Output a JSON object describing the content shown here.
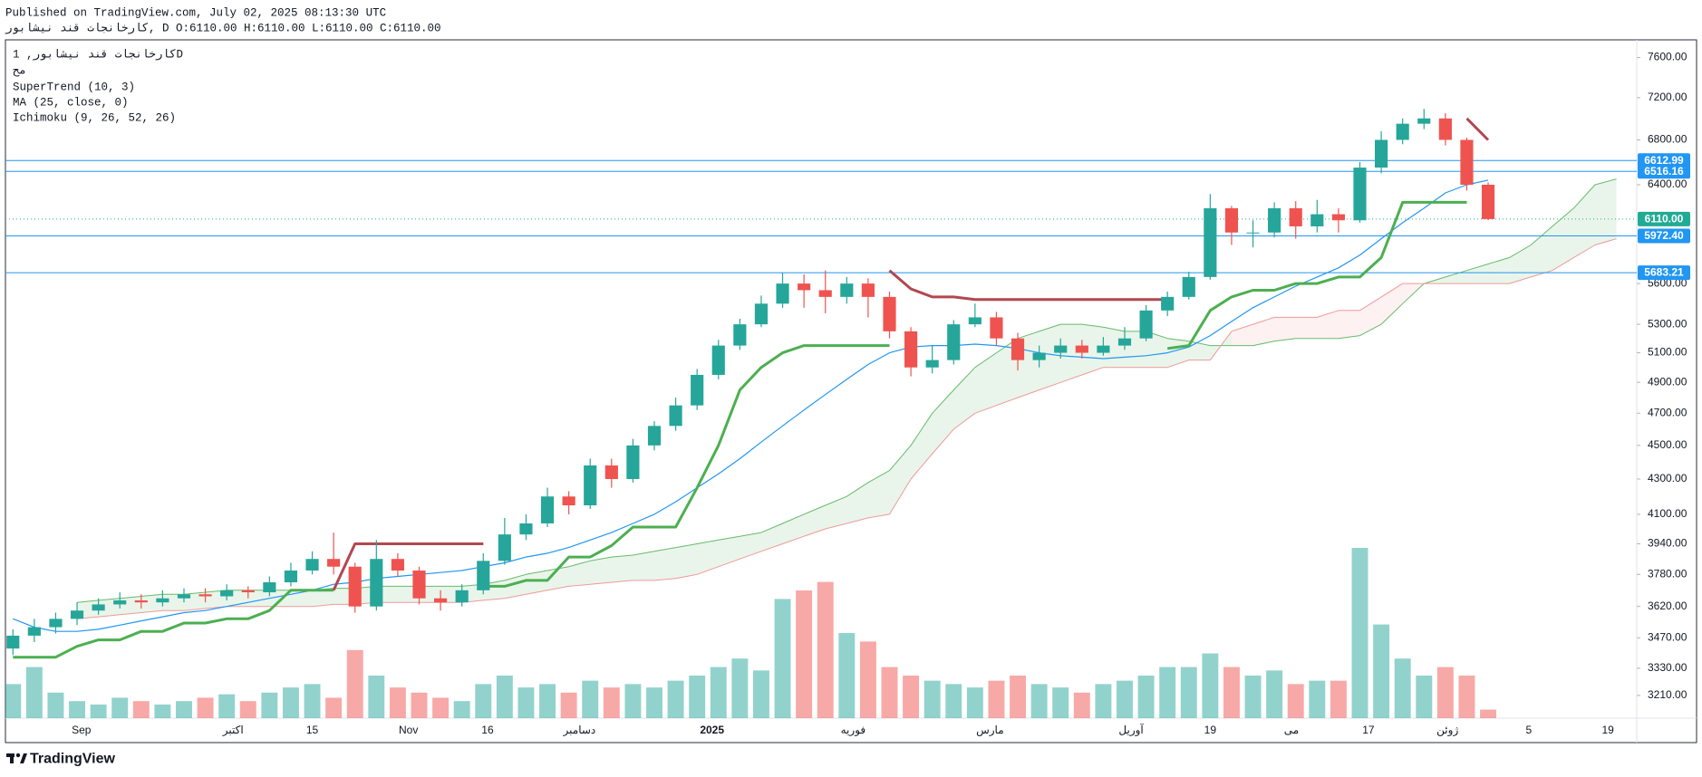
{
  "header": {
    "published": "Published on TradingView.com, July 02, 2025 08:13:30 UTC",
    "symbol_line": "کارخانجات قند نیشابور, D O:6110.00 H:6110.00 L:6110.00 C:6110.00"
  },
  "chart_data": {
    "type": "candlestick",
    "legend": [
      "کارخانجات قند نیشابور, 1D",
      "مح",
      "SuperTrend (10, 3)",
      "MA (25, close, 0)",
      "Ichimoku (9, 26, 52, 26)"
    ],
    "open": [
      3420,
      3480,
      3520,
      3560,
      3600,
      3630,
      3650,
      3640,
      3660,
      3680,
      3670,
      3700,
      3690,
      3740,
      3800,
      3860,
      3820,
      3620,
      3860,
      3800,
      3660,
      3640,
      3700,
      3850,
      3990,
      4050,
      4200,
      4150,
      4380,
      4300,
      4500,
      4620,
      4750,
      4950,
      5150,
      5300,
      5450,
      5600,
      5550,
      5500,
      5600,
      5500,
      5250,
      5000,
      5050,
      5300,
      5350,
      5200,
      5050,
      5100,
      5150,
      5100,
      5150,
      5200,
      5400,
      5500,
      5650,
      6200,
      6000,
      6000,
      6200,
      6050,
      6150,
      6100,
      6550,
      6800,
      6950,
      7000,
      6800,
      6400
    ],
    "high": [
      3510,
      3560,
      3590,
      3640,
      3660,
      3690,
      3680,
      3700,
      3710,
      3710,
      3730,
      3720,
      3770,
      3840,
      3900,
      4000,
      3840,
      3960,
      3890,
      3820,
      3700,
      3730,
      3890,
      4080,
      4100,
      4250,
      4230,
      4420,
      4420,
      4540,
      4650,
      4800,
      4990,
      5190,
      5340,
      5510,
      5680,
      5670,
      5700,
      5650,
      5640,
      5540,
      5280,
      5150,
      5330,
      5450,
      5390,
      5240,
      5150,
      5200,
      5190,
      5210,
      5280,
      5440,
      5540,
      5690,
      6320,
      6220,
      6100,
      6250,
      6260,
      6270,
      6200,
      6600,
      6880,
      7000,
      7090,
      7050,
      6820,
      6420
    ],
    "low": [
      3390,
      3450,
      3490,
      3530,
      3580,
      3610,
      3610,
      3620,
      3640,
      3640,
      3650,
      3660,
      3670,
      3720,
      3780,
      3780,
      3590,
      3600,
      3770,
      3630,
      3600,
      3620,
      3680,
      3830,
      3960,
      4030,
      4100,
      4130,
      4250,
      4280,
      4470,
      4590,
      4720,
      4920,
      5120,
      5280,
      5420,
      5420,
      5380,
      5450,
      5350,
      5200,
      4940,
      4960,
      5020,
      5280,
      5150,
      4980,
      5000,
      5060,
      5060,
      5080,
      5120,
      5180,
      5360,
      5480,
      5630,
      5900,
      5880,
      5960,
      5950,
      6000,
      6000,
      6080,
      6500,
      6760,
      6900,
      6750,
      6350,
      6100
    ],
    "close": [
      3480,
      3520,
      3560,
      3600,
      3630,
      3650,
      3640,
      3660,
      3680,
      3670,
      3700,
      3690,
      3740,
      3800,
      3860,
      3820,
      3620,
      3860,
      3800,
      3660,
      3640,
      3700,
      3850,
      3990,
      4050,
      4200,
      4150,
      4380,
      4300,
      4500,
      4620,
      4750,
      4950,
      5150,
      5300,
      5450,
      5600,
      5550,
      5500,
      5600,
      5500,
      5250,
      5000,
      5050,
      5300,
      5350,
      5200,
      5050,
      5100,
      5150,
      5100,
      5150,
      5200,
      5400,
      5500,
      5650,
      6200,
      6000,
      6000,
      6200,
      6050,
      6150,
      6100,
      6550,
      6800,
      6950,
      7000,
      6800,
      6400,
      6110
    ],
    "up_color": "#26a69a",
    "down_color": "#ef5350",
    "volume": [
      20,
      30,
      15,
      10,
      8,
      12,
      10,
      8,
      10,
      12,
      14,
      10,
      15,
      18,
      20,
      12,
      40,
      25,
      18,
      15,
      12,
      10,
      20,
      25,
      18,
      20,
      15,
      22,
      18,
      20,
      18,
      22,
      25,
      30,
      35,
      28,
      70,
      75,
      80,
      50,
      45,
      30,
      25,
      22,
      20,
      18,
      22,
      25,
      20,
      18,
      15,
      20,
      22,
      25,
      30,
      30,
      38,
      30,
      25,
      28,
      20,
      22,
      22,
      100,
      55,
      35,
      25,
      30,
      25,
      5
    ],
    "supertrend": {
      "up": [
        3380,
        3380,
        3380,
        3430,
        3460,
        3460,
        3500,
        3500,
        3540,
        3540,
        3560,
        3560,
        3600,
        3700,
        3700,
        3700,
        null,
        null,
        null,
        null,
        null,
        null,
        3720,
        3720,
        3750,
        3750,
        3870,
        3870,
        3930,
        4030,
        4030,
        4030,
        4250,
        4500,
        4850,
        5000,
        5100,
        5150,
        5150,
        5150,
        5150,
        5150,
        null,
        null,
        null,
        null,
        null,
        null,
        null,
        null,
        null,
        null,
        null,
        null,
        5130,
        5150,
        5400,
        5500,
        5550,
        5550,
        5600,
        5600,
        5650,
        5650,
        5800,
        6250,
        6250,
        6250,
        6250,
        null
      ],
      "down": [
        null,
        null,
        null,
        null,
        null,
        null,
        null,
        null,
        null,
        null,
        null,
        null,
        null,
        null,
        null,
        3700,
        3940,
        3940,
        3940,
        3940,
        3940,
        3940,
        3940,
        null,
        null,
        null,
        null,
        null,
        null,
        null,
        null,
        null,
        null,
        null,
        null,
        null,
        null,
        null,
        null,
        null,
        null,
        5700,
        5560,
        5500,
        5500,
        5480,
        5480,
        5480,
        5480,
        5480,
        5480,
        5480,
        5480,
        5480,
        5480,
        null,
        null,
        null,
        null,
        null,
        null,
        null,
        null,
        null,
        null,
        null,
        null,
        null,
        7000,
        6800
      ],
      "up_color": "#4caf50",
      "down_color": "#b2474f"
    },
    "ma": {
      "values": [
        3560,
        3520,
        3500,
        3500,
        3510,
        3530,
        3550,
        3570,
        3590,
        3600,
        3620,
        3640,
        3660,
        3680,
        3700,
        3730,
        3740,
        3760,
        3770,
        3780,
        3790,
        3800,
        3820,
        3840,
        3870,
        3890,
        3920,
        3960,
        4000,
        4050,
        4100,
        4170,
        4250,
        4330,
        4420,
        4520,
        4620,
        4720,
        4820,
        4920,
        5020,
        5100,
        5140,
        5150,
        5150,
        5160,
        5150,
        5130,
        5100,
        5080,
        5070,
        5060,
        5070,
        5080,
        5100,
        5140,
        5220,
        5320,
        5420,
        5500,
        5580,
        5650,
        5720,
        5820,
        5950,
        6080,
        6200,
        6330,
        6400,
        6440
      ],
      "color": "#2196f3"
    },
    "ichimoku": {
      "span_a": [
        null,
        null,
        null,
        3640,
        3650,
        3660,
        3670,
        3680,
        3680,
        3690,
        3700,
        3700,
        3700,
        3700,
        3700,
        3710,
        3710,
        3720,
        3720,
        3720,
        3720,
        3720,
        3730,
        3750,
        3780,
        3800,
        3820,
        3850,
        3870,
        3880,
        3900,
        3920,
        3940,
        3960,
        3980,
        4000,
        4050,
        4100,
        4150,
        4200,
        4280,
        4350,
        4500,
        4700,
        4850,
        5000,
        5100,
        5200,
        5250,
        5300,
        5300,
        5280,
        5250,
        5250,
        5200,
        5180,
        5150,
        5150,
        5150,
        5180,
        5200,
        5200,
        5200,
        5220,
        5300,
        5450,
        5600,
        5650,
        5700,
        5750,
        5800,
        5900,
        6050,
        6200,
        6400,
        6450
      ],
      "span_b": [
        null,
        null,
        null,
        3560,
        3570,
        3580,
        3590,
        3600,
        3600,
        3610,
        3620,
        3620,
        3620,
        3620,
        3620,
        3630,
        3630,
        3640,
        3640,
        3640,
        3640,
        3640,
        3650,
        3660,
        3680,
        3700,
        3720,
        3730,
        3740,
        3750,
        3750,
        3760,
        3780,
        3820,
        3860,
        3900,
        3940,
        3980,
        4020,
        4050,
        4080,
        4100,
        4300,
        4450,
        4600,
        4700,
        4750,
        4800,
        4850,
        4900,
        4950,
        5000,
        5000,
        5000,
        5000,
        5050,
        5050,
        5250,
        5300,
        5350,
        5350,
        5350,
        5400,
        5400,
        5500,
        5600,
        5600,
        5600,
        5600,
        5600,
        5600,
        5650,
        5700,
        5800,
        5900,
        5950
      ],
      "a_color": "#66bb6a",
      "b_color": "#ef9a9a"
    },
    "price_lines": [
      {
        "value": 6612.99,
        "label": "6612.99",
        "color": "#2196f3",
        "style": "solid"
      },
      {
        "value": 6516.16,
        "label": "6516.16",
        "color": "#2196f3",
        "style": "solid"
      },
      {
        "value": 6110,
        "label": "6110.00",
        "color": "#22ab94",
        "style": "dotted"
      },
      {
        "value": 5972.4,
        "label": "5972.40",
        "color": "#2196f3",
        "style": "solid"
      },
      {
        "value": 5683.21,
        "label": "5683.21",
        "color": "#2196f3",
        "style": "solid"
      }
    ],
    "ylim": [
      3113,
      7784
    ],
    "log_scale": true,
    "yticks": [
      {
        "value": 3210,
        "label": "3210.00"
      },
      {
        "value": 3330,
        "label": "3330.00"
      },
      {
        "value": 3470,
        "label": "3470.00"
      },
      {
        "value": 3620,
        "label": "3620.00"
      },
      {
        "value": 3780,
        "label": "3780.00"
      },
      {
        "value": 3940,
        "label": "3940.00"
      },
      {
        "value": 4100,
        "label": "4100.00"
      },
      {
        "value": 4300,
        "label": "4300.00"
      },
      {
        "value": 4500,
        "label": "4500.00"
      },
      {
        "value": 4700,
        "label": "4700.00"
      },
      {
        "value": 4900,
        "label": "4900.00"
      },
      {
        "value": 5100,
        "label": "5100.00"
      },
      {
        "value": 5300,
        "label": "5300.00"
      },
      {
        "value": 5600,
        "label": "5600.00"
      },
      {
        "value": 6400,
        "label": "6400.00"
      },
      {
        "value": 6800,
        "label": "6800.00"
      },
      {
        "value": 7200,
        "label": "7200.00"
      },
      {
        "value": 7600,
        "label": "7600.00"
      }
    ],
    "xticks": [
      {
        "value": 3.2,
        "label": "Sep"
      },
      {
        "value": 10.3,
        "label": "اکتبر"
      },
      {
        "value": 14,
        "label": "15"
      },
      {
        "value": 18.5,
        "label": "Nov"
      },
      {
        "value": 22.2,
        "label": "16"
      },
      {
        "value": 26.5,
        "label": "دسامبر"
      },
      {
        "value": 32.7,
        "label": "2025"
      },
      {
        "value": 39.3,
        "label": "فوریه"
      },
      {
        "value": 45.7,
        "label": "مارس"
      },
      {
        "value": 52.3,
        "label": "آوریل"
      },
      {
        "value": 56,
        "label": "19"
      },
      {
        "value": 59.8,
        "label": "می"
      },
      {
        "value": 63.4,
        "label": "17"
      },
      {
        "value": 67.1,
        "label": "ژوئن"
      },
      {
        "value": 70.9,
        "label": "5"
      },
      {
        "value": 74.6,
        "label": "19"
      }
    ]
  },
  "footer": {
    "logo": "TradingView"
  }
}
